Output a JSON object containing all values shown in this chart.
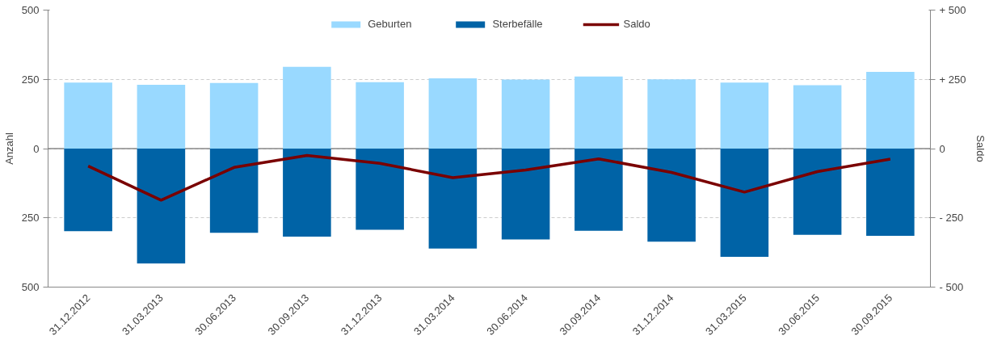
{
  "chart_data": {
    "type": "bar",
    "ylabel": "Anzahl",
    "y2label": "Saldo",
    "categories": [
      "31.12.2012",
      "31.03.2013",
      "30.06.2013",
      "30.09.2013",
      "31.12.2013",
      "31.03.2014",
      "30.06.2014",
      "30.09.2014",
      "31.12.2014",
      "31.03.2015",
      "30.06.2015",
      "30.09.2015"
    ],
    "stacked": true,
    "series": [
      {
        "name": "Geburten",
        "color": "#99d9ff",
        "values": [
          238,
          230,
          237,
          295,
          240,
          254,
          249,
          260,
          250,
          238,
          229,
          277
        ]
      },
      {
        "name": "Sterbefälle",
        "color": "#0063a6",
        "values": [
          -298,
          -415,
          -304,
          -318,
          -293,
          -361,
          -328,
          -297,
          -336,
          -391,
          -311,
          -315
        ]
      },
      {
        "name": "Saldo",
        "type": "line",
        "axis": "y2",
        "color": "#7a0000",
        "values": [
          -63,
          -186,
          -68,
          -25,
          -53,
          -105,
          -77,
          -37,
          -86,
          -157,
          -83,
          -38
        ]
      }
    ],
    "ylim": [
      -500,
      500
    ],
    "yticks": [
      {
        "value": -500,
        "label": "500"
      },
      {
        "value": -250,
        "label": "250"
      },
      0,
      250,
      500
    ],
    "y2lim": [
      -500,
      500
    ],
    "y2ticks": [
      {
        "value": -500,
        "label": "- 500"
      },
      {
        "value": -250,
        "label": "- 250"
      },
      0,
      {
        "value": 250,
        "label": "+ 250"
      },
      {
        "value": 500,
        "label": "+ 500"
      }
    ],
    "grid": "y",
    "legend": "top",
    "line_style": "solid",
    "marker": "none"
  }
}
